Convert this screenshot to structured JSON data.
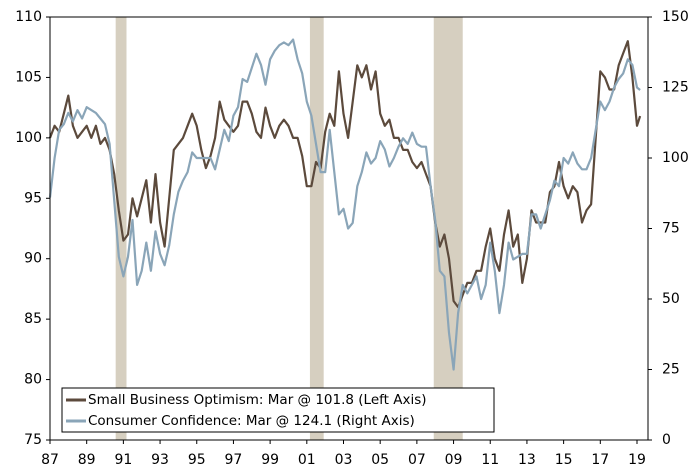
{
  "chart_data": {
    "type": "line",
    "x": [
      1987,
      1987.25,
      1987.5,
      1987.75,
      1988,
      1988.25,
      1988.5,
      1988.75,
      1989,
      1989.25,
      1989.5,
      1989.75,
      1990,
      1990.25,
      1990.5,
      1990.75,
      1991,
      1991.25,
      1991.5,
      1991.75,
      1992,
      1992.25,
      1992.5,
      1992.75,
      1993,
      1993.25,
      1993.5,
      1993.75,
      1994,
      1994.25,
      1994.5,
      1994.75,
      1995,
      1995.25,
      1995.5,
      1995.75,
      1996,
      1996.25,
      1996.5,
      1996.75,
      1997,
      1997.25,
      1997.5,
      1997.75,
      1998,
      1998.25,
      1998.5,
      1998.75,
      1999,
      1999.25,
      1999.5,
      1999.75,
      2000,
      2000.25,
      2000.5,
      2000.75,
      2001,
      2001.25,
      2001.5,
      2001.75,
      2002,
      2002.25,
      2002.5,
      2002.75,
      2003,
      2003.25,
      2003.5,
      2003.75,
      2004,
      2004.25,
      2004.5,
      2004.75,
      2005,
      2005.25,
      2005.5,
      2005.75,
      2006,
      2006.25,
      2006.5,
      2006.75,
      2007,
      2007.25,
      2007.5,
      2007.75,
      2008,
      2008.25,
      2008.5,
      2008.75,
      2009,
      2009.25,
      2009.5,
      2009.75,
      2010,
      2010.25,
      2010.5,
      2010.75,
      2011,
      2011.25,
      2011.5,
      2011.75,
      2012,
      2012.25,
      2012.5,
      2012.75,
      2013,
      2013.25,
      2013.5,
      2013.75,
      2014,
      2014.25,
      2014.5,
      2014.75,
      2015,
      2015.25,
      2015.5,
      2015.75,
      2016,
      2016.25,
      2016.5,
      2016.75,
      2017,
      2017.25,
      2017.5,
      2017.75,
      2018,
      2018.25,
      2018.5,
      2018.75,
      2019,
      2019.17
    ],
    "series": [
      {
        "name": "Small Business Optimism: Mar @ 101.8 (Left Axis)",
        "color": "#5c4a3c",
        "axis": "y",
        "values": [
          100,
          101,
          100.5,
          102,
          103.5,
          101,
          100,
          100.5,
          101,
          100,
          101,
          99.5,
          100,
          99,
          97,
          94,
          91.5,
          92,
          95,
          93.5,
          95,
          96.5,
          93,
          97,
          93,
          91,
          95,
          99,
          99.5,
          100,
          101,
          102,
          101,
          99,
          97.5,
          98.5,
          100,
          103,
          101.5,
          101,
          100.5,
          101,
          103,
          103,
          102,
          100.5,
          100,
          102.5,
          101,
          100,
          101,
          101.5,
          101,
          100,
          100,
          98.5,
          96,
          96,
          98,
          97.5,
          100.5,
          102,
          101,
          105.5,
          102,
          100,
          103,
          106,
          105,
          106,
          104,
          105.5,
          102,
          101,
          101.5,
          100,
          100,
          99,
          99,
          98,
          97.5,
          98,
          97,
          96,
          93,
          91,
          92,
          90,
          86.5,
          86,
          87,
          88,
          88,
          89,
          89,
          91,
          92.5,
          90,
          89,
          92,
          94,
          91,
          92,
          88,
          90,
          94,
          93,
          93,
          93,
          95.5,
          96,
          98,
          96,
          95,
          96,
          95.5,
          93,
          94,
          94.5,
          100,
          105.5,
          105,
          104,
          104,
          106,
          107,
          108,
          105,
          101,
          101.8
        ]
      },
      {
        "name": "Consumer Confidence: Mar @ 124.1 (Right Axis)",
        "color": "#8aa5b8",
        "axis": "y2",
        "values": [
          86,
          100,
          110,
          112,
          116,
          113,
          117,
          114,
          118,
          117,
          116,
          114,
          112,
          105,
          85,
          65,
          58,
          65,
          78,
          55,
          60,
          70,
          60,
          74,
          66,
          62,
          69,
          80,
          88,
          92,
          95,
          102,
          100,
          100,
          100,
          100,
          96,
          103,
          110,
          106,
          115,
          118,
          128,
          127,
          132,
          137,
          133,
          126,
          135,
          138,
          140,
          141,
          140,
          142,
          135,
          130,
          120,
          115,
          105,
          95,
          95,
          110,
          95,
          80,
          82,
          75,
          77,
          90,
          95,
          102,
          98,
          100,
          106,
          103,
          97,
          100,
          104,
          107,
          105,
          109,
          105,
          104,
          104,
          90,
          78,
          60,
          58,
          38,
          25,
          45,
          55,
          52,
          55,
          58,
          50,
          55,
          70,
          60,
          45,
          55,
          70,
          64,
          65,
          66,
          66,
          80,
          80,
          75,
          80,
          85,
          92,
          90,
          100,
          98,
          102,
          98,
          96,
          96,
          100,
          110,
          120,
          117,
          120,
          125,
          128,
          130,
          135,
          133,
          125,
          124.1
        ]
      }
    ],
    "recessions": [
      [
        1990.58,
        1991.17
      ],
      [
        2001.17,
        2001.92
      ],
      [
        2007.92,
        2009.5
      ]
    ],
    "recession_color": "#d6cfc0",
    "xlim": [
      1987,
      2019.6
    ],
    "xticks": [
      {
        "value": 1987,
        "label": "87"
      },
      {
        "value": 1989,
        "label": "89"
      },
      {
        "value": 1991,
        "label": "91"
      },
      {
        "value": 1993,
        "label": "93"
      },
      {
        "value": 1995,
        "label": "95"
      },
      {
        "value": 1997,
        "label": "97"
      },
      {
        "value": 1999,
        "label": "99"
      },
      {
        "value": 2001,
        "label": "01"
      },
      {
        "value": 2003,
        "label": "03"
      },
      {
        "value": 2005,
        "label": "05"
      },
      {
        "value": 2007,
        "label": "07"
      },
      {
        "value": 2009,
        "label": "09"
      },
      {
        "value": 2011,
        "label": "11"
      },
      {
        "value": 2013,
        "label": "13"
      },
      {
        "value": 2015,
        "label": "15"
      },
      {
        "value": 2017,
        "label": "17"
      },
      {
        "value": 2019,
        "label": "19"
      }
    ],
    "ylim": [
      75,
      110
    ],
    "yticks": [
      75,
      80,
      85,
      90,
      95,
      100,
      105,
      110
    ],
    "y2lim": [
      0,
      150
    ],
    "y2ticks": [
      0,
      25,
      50,
      75,
      100,
      125,
      150
    ],
    "legend": "lower left"
  }
}
